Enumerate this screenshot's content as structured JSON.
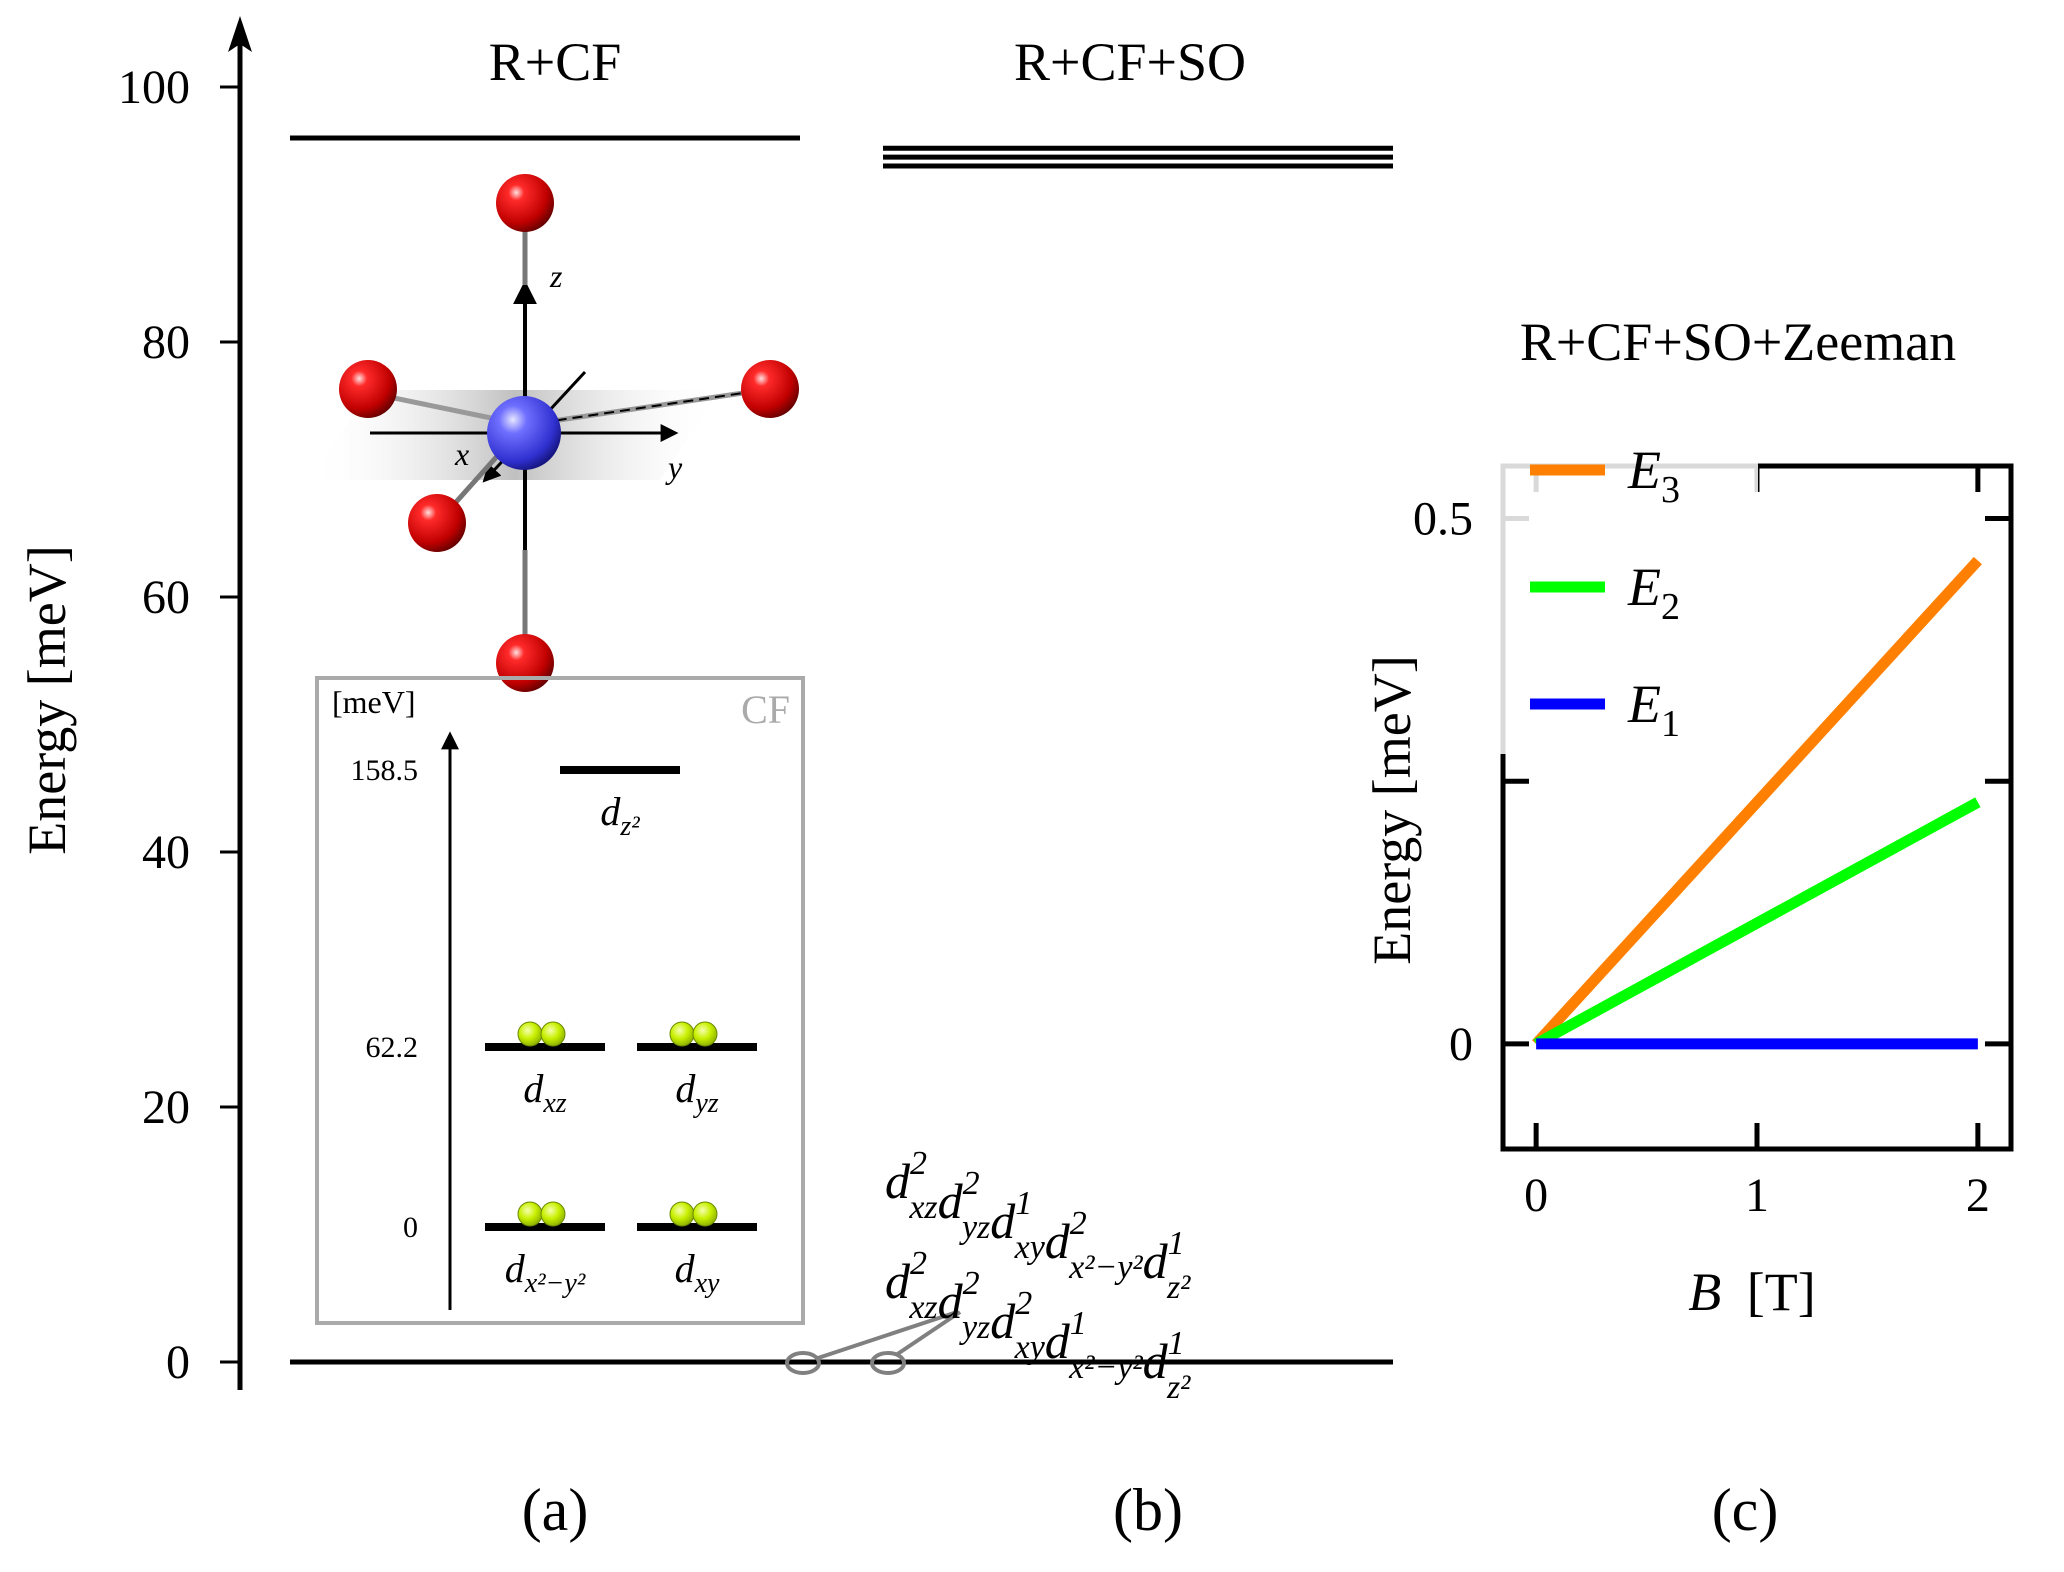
{
  "chart_data": [
    {
      "panel": "(a)",
      "type": "levels",
      "title": "R+CF",
      "ylabel": "Energy [meV]",
      "ylim": [
        0,
        100
      ],
      "yticks": [
        "0",
        "20",
        "40",
        "60",
        "80",
        "100"
      ],
      "levels": [
        0,
        96
      ],
      "axis_labels": {
        "x": "x",
        "y": "y",
        "z": "z"
      },
      "inset": {
        "label": "CF",
        "unit": "[meV]",
        "ticks": [
          "0",
          "62.2",
          "158.5"
        ],
        "orbitals": [
          {
            "name": "d_{x2-y2}",
            "energy": 0,
            "electrons": 2
          },
          {
            "name": "d_xy",
            "energy": 0,
            "electrons": 2
          },
          {
            "name": "d_xz",
            "energy": 62.2,
            "electrons": 2
          },
          {
            "name": "d_yz",
            "energy": 62.2,
            "electrons": 2
          },
          {
            "name": "d_z2",
            "energy": 158.5,
            "electrons": 0
          }
        ]
      }
    },
    {
      "panel": "(b)",
      "type": "levels",
      "title": "R+CF+SO",
      "levels": [
        0,
        93.8,
        94.5,
        95.2
      ],
      "configurations": [
        {
          "base": [
            "d",
            "d",
            "d",
            "d",
            "d"
          ],
          "sub": [
            "xz",
            "yz",
            "xy",
            "x²−y²",
            "z²"
          ],
          "sup": [
            "2",
            "2",
            "1",
            "2",
            "1"
          ]
        },
        {
          "base": [
            "d",
            "d",
            "d",
            "d",
            "d"
          ],
          "sub": [
            "xz",
            "yz",
            "xy",
            "x²−y²",
            "z²"
          ],
          "sup": [
            "2",
            "2",
            "2",
            "1",
            "1"
          ]
        }
      ]
    },
    {
      "panel": "(c)",
      "type": "line",
      "title": "R+CF+SO+Zeeman",
      "xlabel": "[T]",
      "xlabel_symbol": "B",
      "ylabel": "Energy [meV]",
      "xlim": [
        -0.15,
        2.15
      ],
      "ylim": [
        -0.1,
        0.55
      ],
      "xticks": [
        "0",
        "1",
        "2"
      ],
      "yticks": [
        "0",
        "0.5"
      ],
      "x": [
        0,
        2
      ],
      "series": [
        {
          "name": "E3",
          "base": "E",
          "sub": "3",
          "color": "#ff8000",
          "values": [
            0,
            0.46
          ]
        },
        {
          "name": "E2",
          "base": "E",
          "sub": "2",
          "color": "#00ff00",
          "values": [
            0,
            0.23
          ]
        },
        {
          "name": "E1",
          "base": "E",
          "sub": "1",
          "color": "#0000ff",
          "values": [
            0,
            0
          ]
        }
      ]
    }
  ]
}
